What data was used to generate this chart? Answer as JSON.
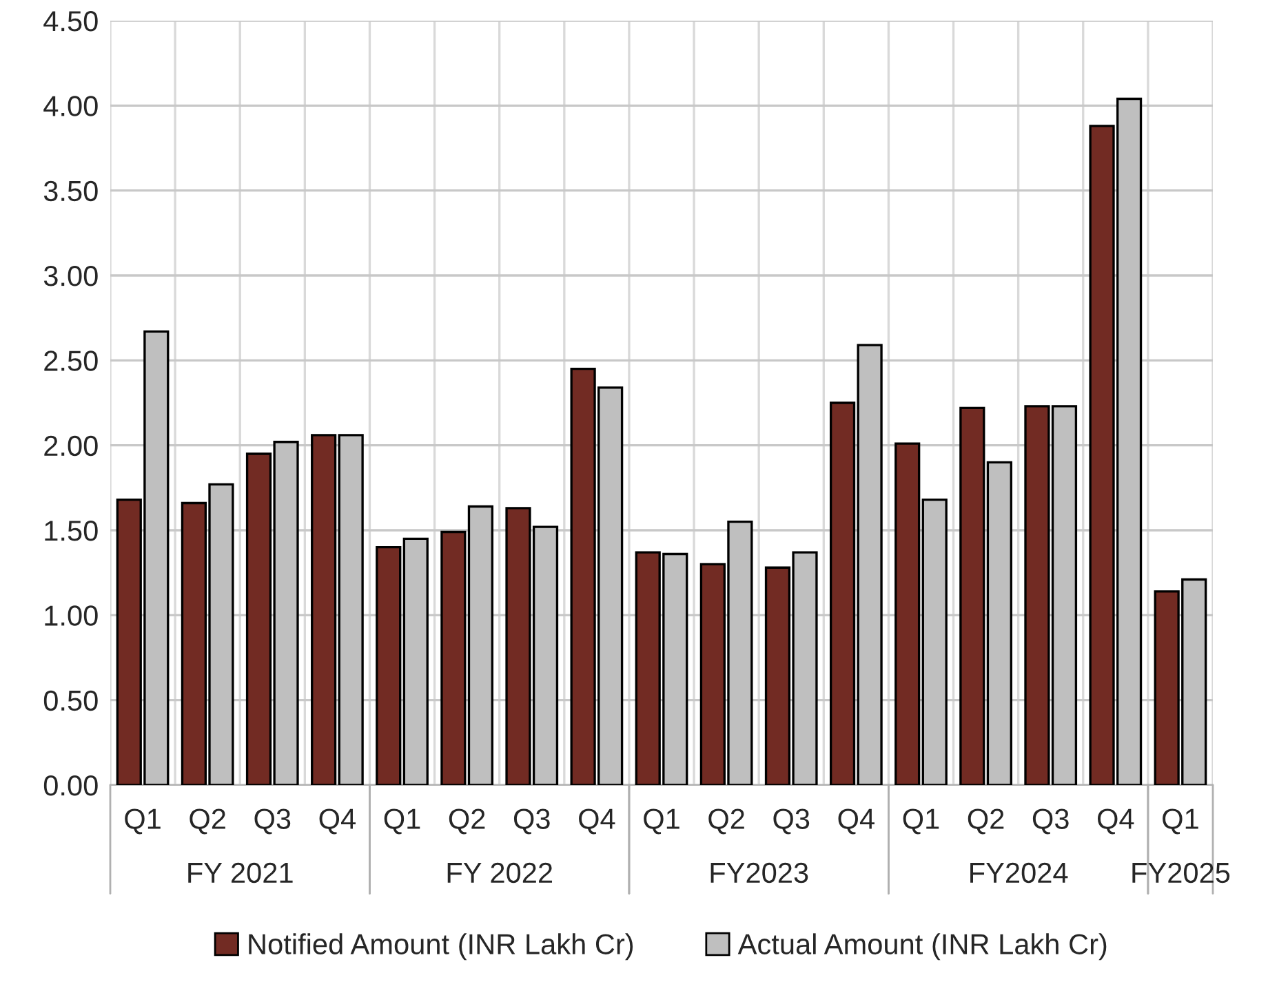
{
  "chart_data": {
    "type": "bar",
    "categories": [
      "Q1",
      "Q2",
      "Q3",
      "Q4",
      "Q1",
      "Q2",
      "Q3",
      "Q4",
      "Q1",
      "Q2",
      "Q3",
      "Q4",
      "Q1",
      "Q2",
      "Q3",
      "Q4",
      "Q1"
    ],
    "annotations": [
      "FY 2021",
      "FY 2022",
      "FY2023",
      "FY2024",
      "FY2025"
    ],
    "series": [
      {
        "name": "Notified Amount (INR Lakh Cr)",
        "color": "#722b23",
        "values": [
          1.68,
          1.66,
          1.95,
          2.06,
          1.4,
          1.49,
          1.63,
          2.45,
          1.37,
          1.3,
          1.28,
          2.25,
          2.01,
          2.22,
          2.23,
          3.88,
          1.14
        ]
      },
      {
        "name": "Actual Amount (INR Lakh Cr)",
        "color": "#bfbfbf",
        "values": [
          2.67,
          1.77,
          2.02,
          2.06,
          1.45,
          1.64,
          1.52,
          2.34,
          1.36,
          1.55,
          1.37,
          2.59,
          1.68,
          1.9,
          2.23,
          4.04,
          1.21
        ]
      }
    ],
    "ylim": [
      0,
      4.5
    ],
    "yticks": [
      {
        "value": 0,
        "label": "0.00"
      },
      {
        "value": 0.5,
        "label": "0.50"
      },
      {
        "value": 1,
        "label": "1.00"
      },
      {
        "value": 1.5,
        "label": "1.50"
      },
      {
        "value": 2,
        "label": "2.00"
      },
      {
        "value": 2.5,
        "label": "2.50"
      },
      {
        "value": 3,
        "label": "3.00"
      },
      {
        "value": 3.5,
        "label": "3.50"
      },
      {
        "value": 4,
        "label": "4.00"
      },
      {
        "value": 4.5,
        "label": "4.50"
      }
    ],
    "grid": true,
    "legend": "bottom"
  }
}
